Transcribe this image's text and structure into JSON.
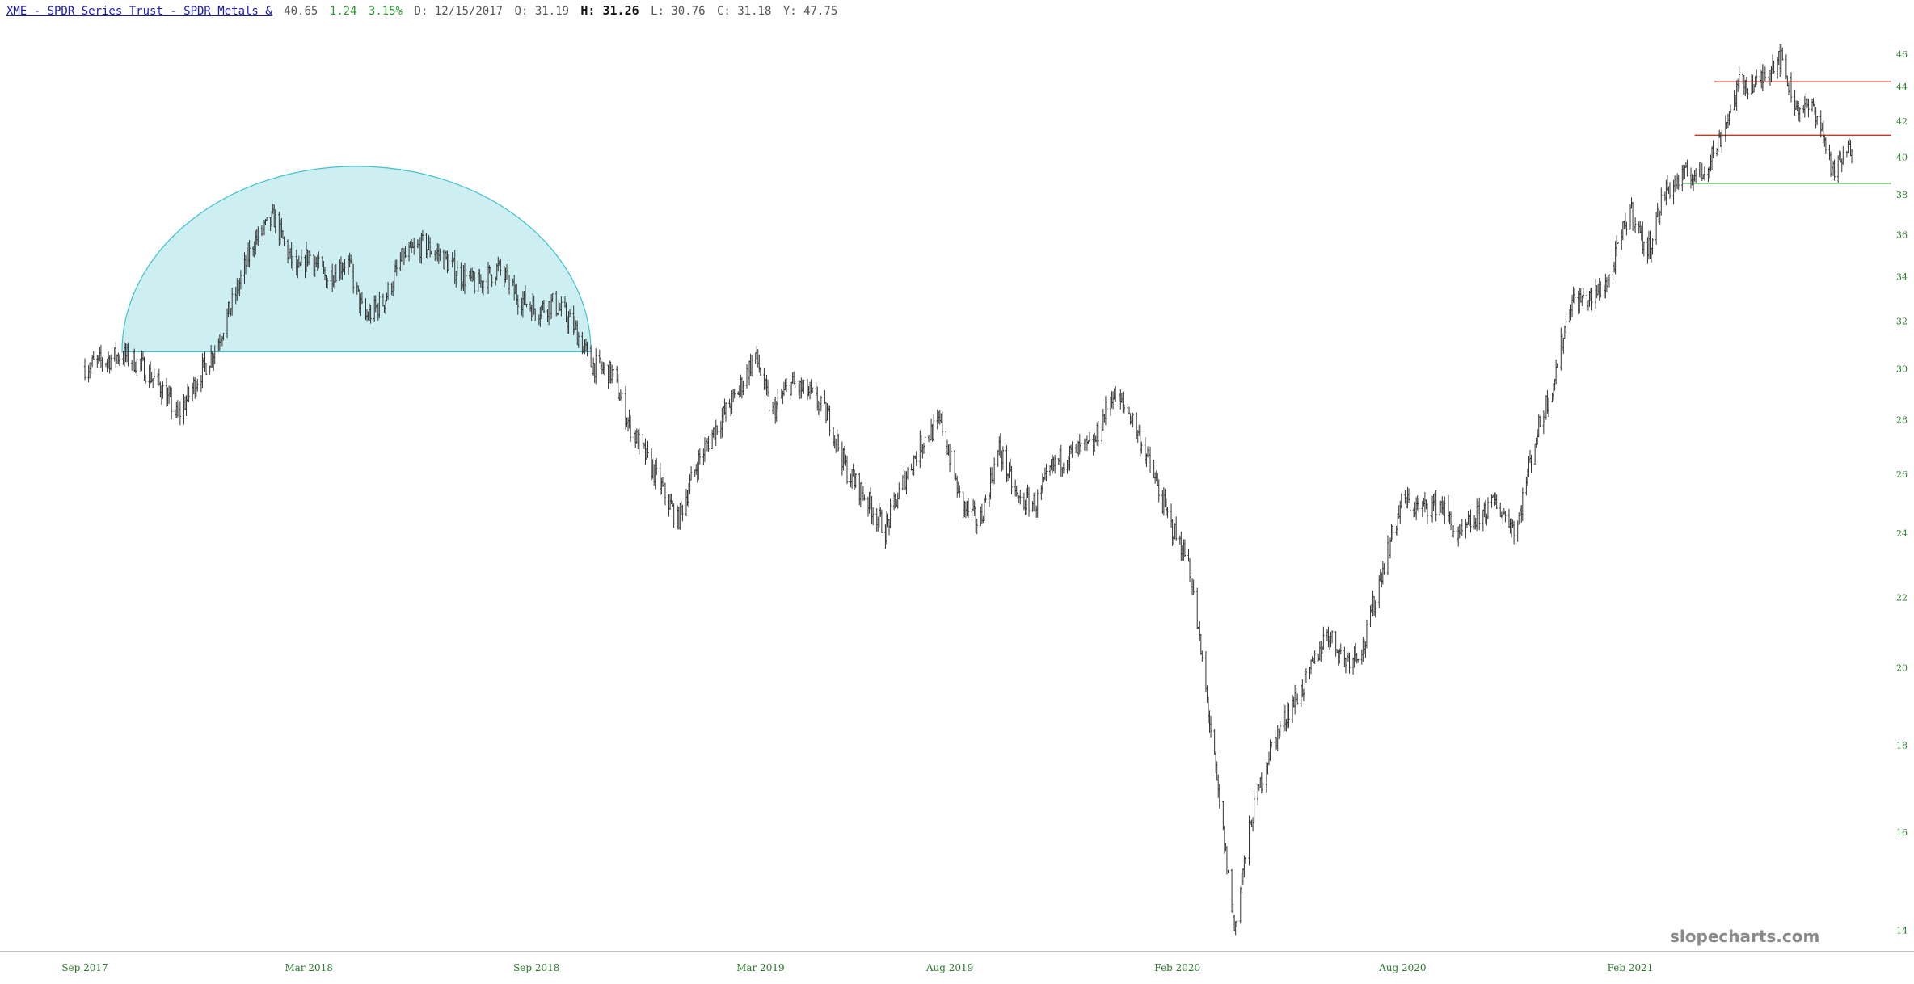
{
  "header": {
    "symbol_link": "XME - SPDR Series Trust - SPDR Metals &",
    "last": "40.65",
    "change": "1.24",
    "change_pct": "3.15%",
    "date_label": "D: 12/15/2017",
    "open_label": "O: 31.19",
    "high_label": "H: 31.26",
    "low_label": "L: 30.76",
    "close_label": "C: 31.18",
    "y_label": "Y: 47.75"
  },
  "watermark": "slopecharts.com",
  "colors": {
    "price_bars": "#333333",
    "axis_text": "#2a7a2a",
    "dome_fill": "#cdeff2",
    "dome_stroke": "#3ec3cf",
    "resistance_lines": "#c0392b",
    "support_line": "#3f9a3f",
    "up_text": "#2a9a2a",
    "link": "#1a1ab0"
  },
  "chart_data": {
    "type": "line",
    "title": "",
    "xlabel": "",
    "ylabel": "",
    "y_scale": "log",
    "ylim": [
      13.6,
      48
    ],
    "y_ticks": [
      "14",
      "16",
      "18",
      "20",
      "22",
      "24",
      "26",
      "28",
      "30",
      "32",
      "34",
      "36",
      "38",
      "40",
      "42",
      "44",
      "46"
    ],
    "x_ticks": [
      "Sep 2017",
      "Mar 2018",
      "Sep 2018",
      "Mar 2019",
      "Aug 2019",
      "Feb 2020",
      "Aug 2020",
      "Feb 2021"
    ],
    "xlim": [
      "2017-09-01",
      "2021-08-31"
    ],
    "series": [
      {
        "x": [
          "2017-09-01",
          "2017-09-15",
          "2017-10-01",
          "2017-10-15",
          "2017-11-01",
          "2017-11-15",
          "2017-12-01",
          "2017-12-15",
          "2018-01-01",
          "2018-01-15",
          "2018-02-01",
          "2018-02-10",
          "2018-02-20",
          "2018-03-01",
          "2018-03-15",
          "2018-04-01",
          "2018-04-15",
          "2018-05-01",
          "2018-05-15",
          "2018-06-01",
          "2018-06-15",
          "2018-07-01",
          "2018-07-15",
          "2018-08-01",
          "2018-08-15",
          "2018-09-01",
          "2018-09-15",
          "2018-10-01",
          "2018-10-15",
          "2018-11-01",
          "2018-11-15",
          "2018-12-01",
          "2018-12-15",
          "2018-12-24",
          "2019-01-10",
          "2019-01-25",
          "2019-02-10",
          "2019-02-25",
          "2019-03-10",
          "2019-03-25",
          "2019-04-10",
          "2019-04-25",
          "2019-05-10",
          "2019-05-25",
          "2019-06-10",
          "2019-06-25",
          "2019-07-10",
          "2019-07-25",
          "2019-08-10",
          "2019-08-25",
          "2019-09-10",
          "2019-09-25",
          "2019-10-10",
          "2019-10-25",
          "2019-11-10",
          "2019-11-25",
          "2019-12-10",
          "2019-12-25",
          "2020-01-10",
          "2020-01-25",
          "2020-02-10",
          "2020-02-20",
          "2020-03-05",
          "2020-03-18",
          "2020-04-01",
          "2020-04-15",
          "2020-05-01",
          "2020-05-15",
          "2020-06-01",
          "2020-06-15",
          "2020-07-01",
          "2020-07-15",
          "2020-08-01",
          "2020-08-15",
          "2020-09-01",
          "2020-09-15",
          "2020-10-01",
          "2020-10-15",
          "2020-11-01",
          "2020-11-15",
          "2020-12-01",
          "2020-12-15",
          "2021-01-01",
          "2021-01-15",
          "2021-02-01",
          "2021-02-15",
          "2021-03-01",
          "2021-03-15",
          "2021-04-01",
          "2021-04-15",
          "2021-05-01",
          "2021-05-15",
          "2021-06-01",
          "2021-06-15",
          "2021-07-01",
          "2021-07-15",
          "2021-07-30"
        ],
        "values": [
          30.1,
          30.3,
          30.6,
          30.2,
          29.3,
          28.1,
          29.6,
          30.8,
          33.2,
          35.6,
          36.8,
          35.4,
          34.1,
          35.1,
          33.9,
          34.8,
          32.1,
          32.9,
          34.8,
          35.5,
          35.0,
          34.1,
          33.6,
          34.4,
          33.2,
          32.5,
          32.8,
          31.8,
          30.2,
          29.8,
          27.8,
          26.4,
          25.2,
          24.4,
          26.5,
          27.8,
          29.0,
          30.6,
          28.2,
          29.4,
          29.0,
          28.1,
          26.1,
          25.2,
          24.1,
          25.8,
          27.2,
          27.9,
          25.0,
          24.3,
          26.9,
          25.1,
          25.0,
          26.4,
          26.8,
          27.0,
          29.0,
          28.2,
          26.3,
          24.4,
          23.1,
          20.4,
          16.8,
          14.0,
          16.3,
          17.8,
          18.9,
          19.6,
          21.0,
          20.2,
          20.6,
          22.8,
          25.1,
          24.8,
          25.0,
          23.8,
          24.6,
          25.0,
          24.1,
          27.1,
          29.5,
          32.9,
          33.0,
          33.9,
          37.3,
          35.1,
          38.2,
          38.9,
          39.2,
          41.1,
          44.3,
          44.1,
          46.0,
          42.9,
          42.6,
          39.1,
          40.65
        ]
      }
    ],
    "annotations": [
      {
        "type": "rounded-top dome (filled semicircle)",
        "from": "2017-10-01",
        "to": "2018-10-15",
        "base": 30.7,
        "top": 39.5
      },
      {
        "type": "resistance line",
        "value": 44.3,
        "from": "2021-04-10",
        "to": "2021-08-31"
      },
      {
        "type": "resistance line",
        "value": 41.2,
        "from": "2021-03-25",
        "to": "2021-08-31"
      },
      {
        "type": "support line",
        "value": 38.6,
        "from": "2021-03-15",
        "to": "2021-08-31"
      }
    ]
  }
}
